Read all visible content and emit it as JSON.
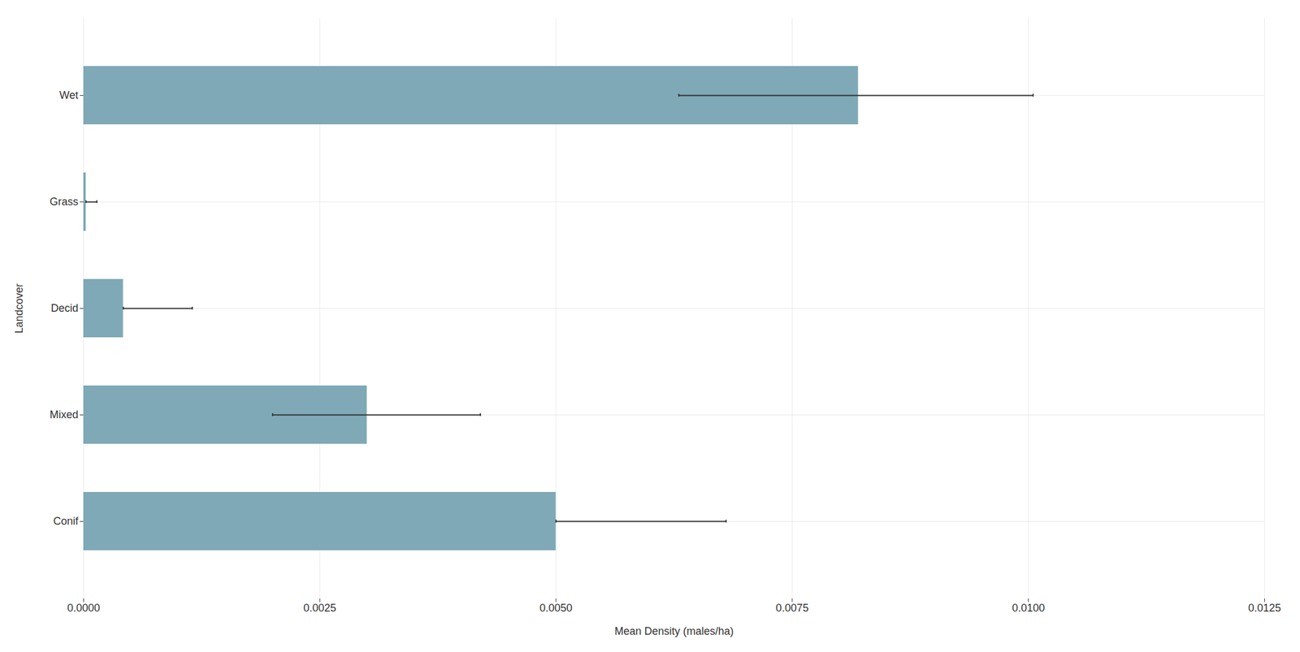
{
  "chart_data": {
    "type": "bar",
    "orientation": "horizontal",
    "categories": [
      "Conif",
      "Mixed",
      "Decid",
      "Grass",
      "Wet"
    ],
    "values": [
      0.005,
      0.003,
      0.00042,
      2.5e-05,
      0.0082
    ],
    "error_low": [
      0.005,
      0.002,
      0.00042,
      2.5e-05,
      0.0063
    ],
    "error_high": [
      0.0068,
      0.0042,
      0.00115,
      0.00014,
      0.01005
    ],
    "color": "#7fa9b6",
    "xlabel": "Mean Density (males/ha)",
    "ylabel": "Landcover",
    "xlim": [
      0,
      0.0125
    ],
    "xticks": [
      {
        "value": 0,
        "label": "0.0000"
      },
      0.0025,
      {
        "value": 0.005,
        "label": "0.0050"
      },
      0.0075,
      {
        "value": 0.01,
        "label": "0.0100"
      },
      0.0125
    ],
    "grid": true
  }
}
